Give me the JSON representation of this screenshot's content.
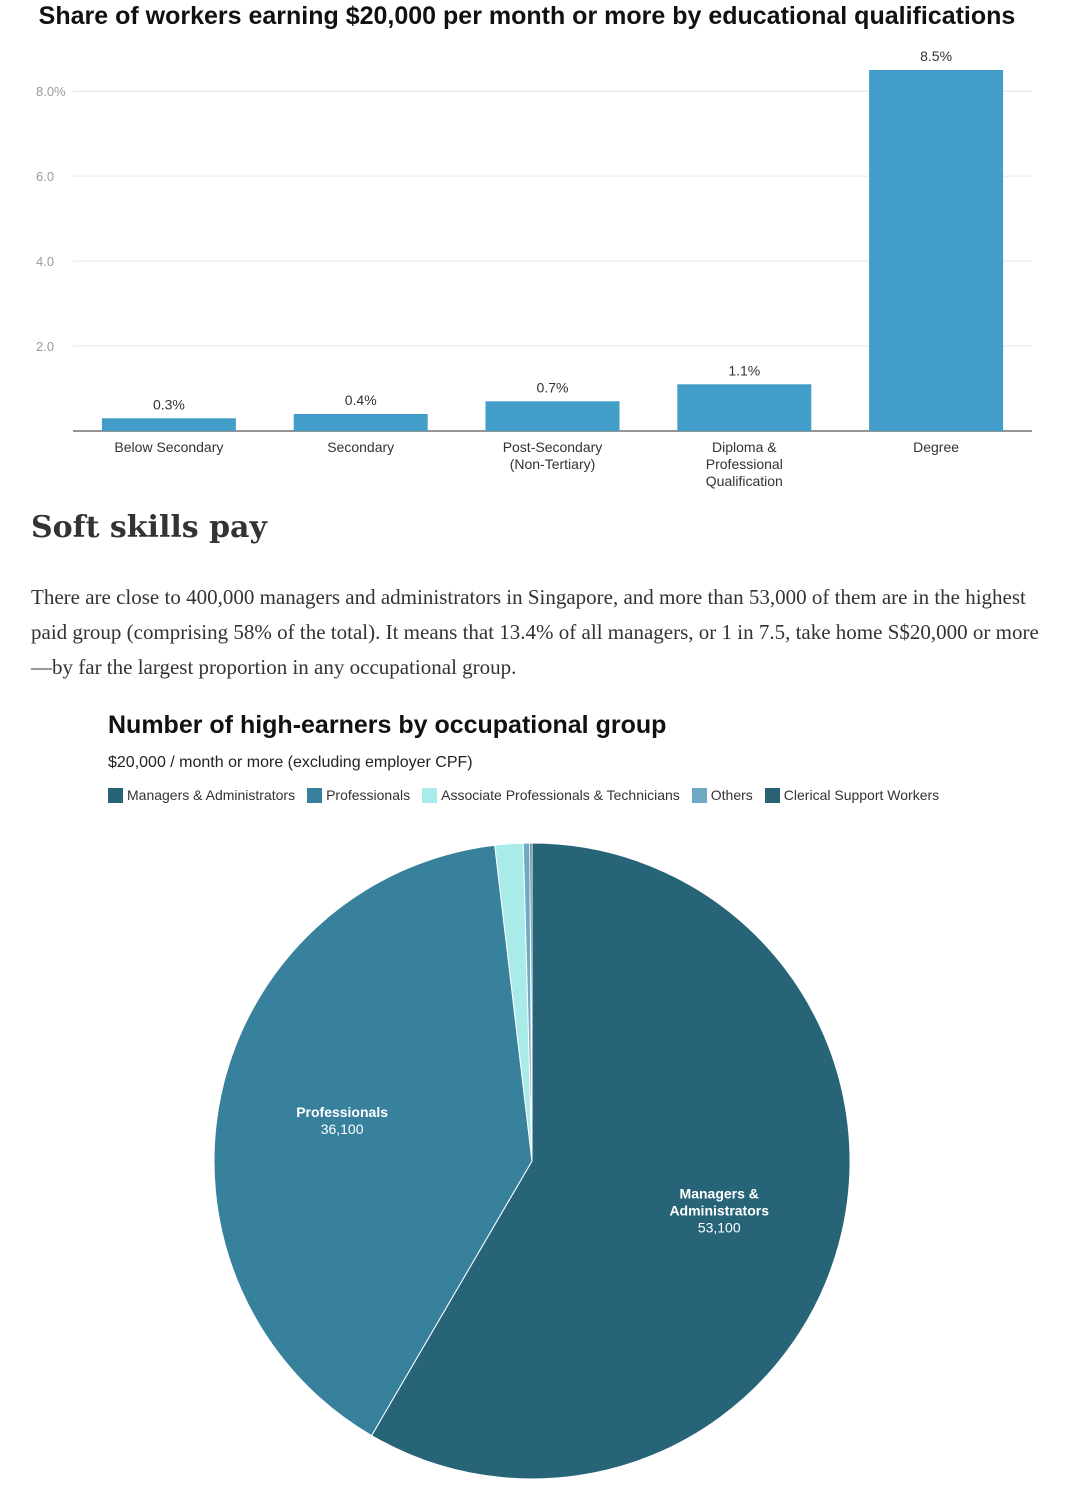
{
  "bar_chart_title": "Share of workers earning $20,000 per month or more by educational qualifications",
  "article": {
    "heading": "Soft skills pay",
    "paragraph": "There are close to 400,000 managers and administrators in Singapore, and more than 53,000 of them are in the highest paid group (comprising 58% of the total). It means that 13.4% of all managers, or 1 in 7.5, take home S$20,000 or more—by far the largest proportion in any occupational group."
  },
  "pie_chart_title": "Number of high-earners by occupational group",
  "pie_chart_subtitle": "$20,000 / month or more (excluding employer CPF)",
  "chart_data": [
    {
      "type": "bar",
      "title": "Share of workers earning $20,000 per month or more by educational qualifications",
      "categories": [
        "Below Secondary",
        "Secondary",
        "Post-Secondary (Non-Tertiary)",
        "Diploma & Professional Qualification",
        "Degree"
      ],
      "values": [
        0.3,
        0.4,
        0.7,
        1.1,
        8.5
      ],
      "data_labels": [
        "0.3%",
        "0.4%",
        "0.7%",
        "1.1%",
        "8.5%"
      ],
      "yticks": [
        2.0,
        4.0,
        6.0,
        8.0
      ],
      "ytick_labels": [
        "2.0",
        "4.0",
        "6.0",
        "8.0%"
      ],
      "ylim": [
        0,
        8.5
      ],
      "grid": true,
      "color": "#429ec9"
    },
    {
      "type": "pie",
      "title": "Number of high-earners by occupational group",
      "subtitle": "$20,000 / month or more (excluding employer CPF)",
      "legend_position": "top",
      "slices": [
        {
          "name": "Managers & Administrators",
          "label": "Managers & Administrators",
          "value": 53100,
          "value_label": "53,100",
          "color": "#286478"
        },
        {
          "name": "Professionals",
          "label": "Professionals",
          "value": 36100,
          "value_label": "36,100",
          "color": "#38819d"
        },
        {
          "name": "Associate Professionals & Technicians",
          "value": 1300,
          "color": "#a8ebe8"
        },
        {
          "name": "Others",
          "value": 300,
          "color": "#6fa9c3"
        },
        {
          "name": "Clerical Support Workers",
          "value": 100,
          "color": "#2a6275"
        }
      ]
    }
  ]
}
